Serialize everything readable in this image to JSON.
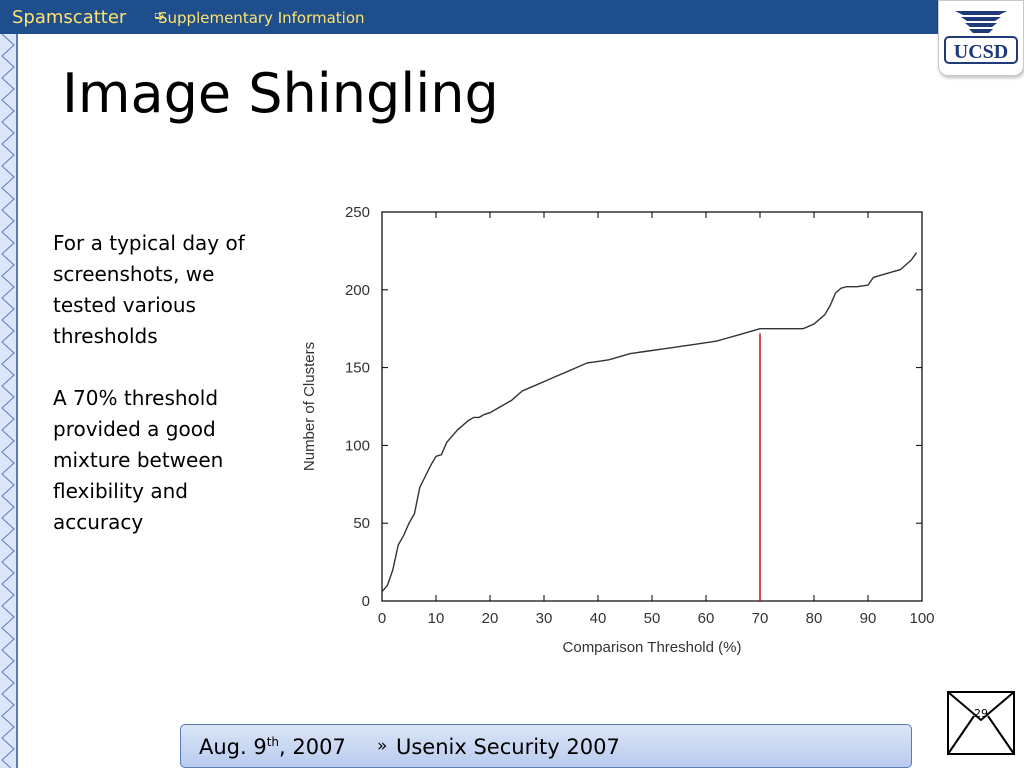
{
  "header": {
    "brand": "Spamscatter",
    "crumb_arrow": "➭",
    "crumb": "Supplementary Information",
    "logo_text": "UCSD"
  },
  "slide": {
    "title": "Image Shingling",
    "paragraphs": [
      "For a typical day of screenshots, we tested various thresholds",
      "A 70% threshold provided a good mixture between flexibility and accuracy"
    ],
    "page_number": "29"
  },
  "footer": {
    "date_prefix": "Aug. 9",
    "date_sup": "th",
    "date_suffix": ", 2007",
    "separator": "»",
    "conference": "Usenix Security 2007"
  },
  "colors": {
    "header_bg": "#1f4e8c",
    "header_text": "#ffe36e",
    "curve": "#333333",
    "marker": "#cc0000",
    "footer_bg": "#c9d8f3"
  },
  "chart_data": {
    "type": "line",
    "title": "",
    "xlabel": "Comparison Threshold (%)",
    "ylabel": "Number of Clusters",
    "xlim": [
      0,
      100
    ],
    "ylim": [
      0,
      250
    ],
    "xticks": [
      0,
      10,
      20,
      30,
      40,
      50,
      60,
      70,
      80,
      90,
      100
    ],
    "yticks": [
      0,
      50,
      100,
      150,
      200,
      250
    ],
    "grid": false,
    "legend": "none",
    "series": [
      {
        "x": [
          0,
          1,
          2,
          3,
          4,
          5,
          6,
          7,
          8,
          9,
          10,
          11,
          12,
          13,
          14,
          15,
          16,
          17,
          18,
          19,
          20,
          22,
          24,
          26,
          28,
          30,
          32,
          34,
          36,
          38,
          40,
          42,
          44,
          46,
          48,
          50,
          52,
          54,
          56,
          58,
          60,
          62,
          64,
          66,
          68,
          70,
          72,
          74,
          76,
          78,
          80,
          82,
          83,
          84,
          85,
          86,
          88,
          90,
          91,
          92,
          94,
          96,
          97,
          98,
          99
        ],
        "y": [
          6,
          10,
          20,
          36,
          42,
          50,
          56,
          73,
          80,
          87,
          93,
          94,
          102,
          106,
          110,
          113,
          116,
          118,
          118,
          120,
          121,
          125,
          129,
          135,
          138,
          141,
          144,
          147,
          150,
          153,
          154,
          155,
          157,
          159,
          160,
          161,
          162,
          163,
          164,
          165,
          166,
          167,
          169,
          171,
          173,
          175,
          175,
          175,
          175,
          175,
          178,
          184,
          190,
          198,
          201,
          202,
          202,
          203,
          208,
          209,
          211,
          213,
          216,
          219,
          224
        ]
      }
    ],
    "annotations": [
      {
        "type": "vline",
        "x": 70,
        "y_from": 0,
        "y_to": 172,
        "color": "#cc0000"
      }
    ]
  }
}
